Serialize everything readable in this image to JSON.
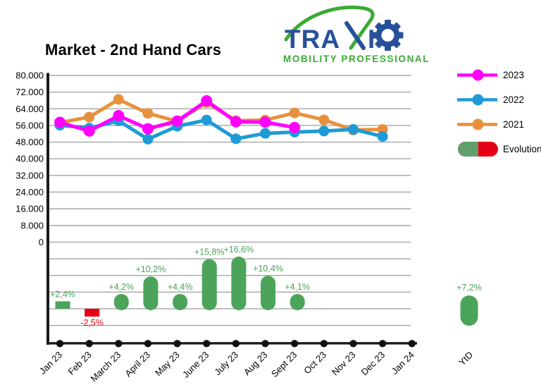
{
  "title": "Market - 2nd Hand Cars",
  "logo": {
    "brand_prefix": "TRA",
    "brand_i": "I",
    "brand": "TRAXIO",
    "tagline": "MOBILITY PROFESSIONALS",
    "blue": "#27509B",
    "green": "#3BAA35"
  },
  "chart_data": {
    "type": "line",
    "title": "Market - 2nd Hand Cars",
    "x_categories": [
      "Jan 23",
      "Feb 23",
      "March 23",
      "April 23",
      "May 23",
      "June 23",
      "July 23",
      "Aug 23",
      "Sept 23",
      "Oct 23",
      "Nov 23",
      "Dec 23",
      "Jan 24"
    ],
    "y_axis": {
      "min": 0,
      "max": 80000,
      "step": 8000,
      "tick_labels": [
        "80.000",
        "72.000",
        "64.000",
        "56.000",
        "48.000",
        "40.000",
        "32.000",
        "24.000",
        "16.000",
        "8.000",
        "0"
      ]
    },
    "grid": true,
    "legend_position": "right",
    "series": [
      {
        "name": "2023",
        "color": "#FF00FF",
        "values": [
          57500,
          53300,
          60700,
          54400,
          58100,
          67800,
          57800,
          57600,
          55000,
          null,
          null,
          null,
          null
        ]
      },
      {
        "name": "2022",
        "color": "#1E9BD7",
        "values": [
          56100,
          54700,
          58200,
          49400,
          55600,
          58600,
          49600,
          52200,
          52800,
          53300,
          54100,
          50700,
          null
        ]
      },
      {
        "name": "2021",
        "color": "#E8913C",
        "values": [
          57400,
          60000,
          68500,
          61800,
          58000,
          67000,
          58300,
          58600,
          62000,
          58700,
          53800,
          54100,
          null
        ]
      }
    ],
    "evolution": {
      "name": "Evolution",
      "positive_color": "#4BA45A",
      "negative_color": "#E60014",
      "points": [
        {
          "label": "+2,4%",
          "pct": 2.4,
          "shape": "rect"
        },
        {
          "label": "-2,5%",
          "pct": -2.5,
          "shape": "rect"
        },
        {
          "label": "+4,2%",
          "pct": 4.2,
          "shape": "round"
        },
        {
          "label": "+10,2%",
          "pct": 10.2,
          "shape": "round"
        },
        {
          "label": "+4,4%",
          "pct": 4.4,
          "shape": "round"
        },
        {
          "label": "+15,8%",
          "pct": 15.8,
          "shape": "round"
        },
        {
          "label": "+16,6%",
          "pct": 16.6,
          "shape": "round"
        },
        {
          "label": "+10,4%",
          "pct": 10.4,
          "shape": "round"
        },
        {
          "label": "+4,1%",
          "pct": 4.1,
          "shape": "round"
        },
        null,
        null,
        null,
        null
      ],
      "ytd": {
        "x_label": "YtD",
        "label": "+7,2%",
        "pct": 7.2
      }
    },
    "legend": [
      {
        "label": "2023",
        "type": "line",
        "color": "#FF00FF"
      },
      {
        "label": "2022",
        "type": "line",
        "color": "#1E9BD7"
      },
      {
        "label": "2021",
        "type": "line",
        "color": "#E8913C"
      },
      {
        "label": "Evolution",
        "type": "capsule",
        "colors": [
          "#639E6D",
          "#E60014"
        ]
      }
    ]
  }
}
